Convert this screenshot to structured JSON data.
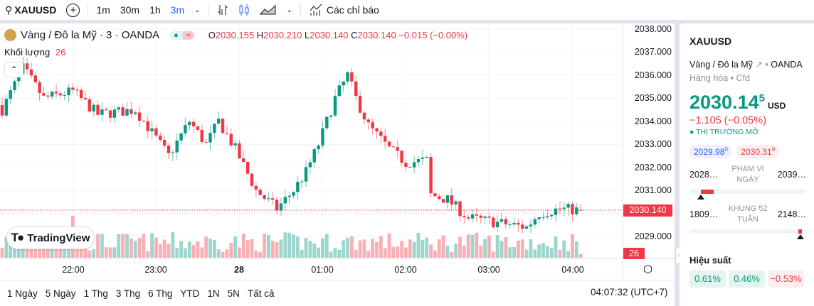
{
  "toolbar": {
    "symbol": "XAUUSD",
    "intervals": [
      "1m",
      "30m",
      "1h",
      "3m"
    ],
    "active_interval": "3m",
    "indicators_label": "Các chỉ báo"
  },
  "legend": {
    "title": "Vàng / Đô la Mỹ · 3 · OANDA",
    "o_label": "O",
    "o": "2030.155",
    "h_label": "H",
    "h": "2030.210",
    "l_label": "L",
    "l": "2030.140",
    "c_label": "C",
    "c": "2030.140",
    "change": "−0.015 (−0.00%)",
    "volume_label": "Khối lượng",
    "volume": "26"
  },
  "logo_text": "TradingView",
  "price_axis": [
    "2038.000",
    "2037.000",
    "2036.000",
    "2035.000",
    "2034.000",
    "2033.000",
    "2032.000",
    "2031.000",
    "2030.000",
    "2029.000"
  ],
  "current_price": "2030.140",
  "current_volume": "26",
  "time_axis": [
    "22:00",
    "23:00",
    "28",
    "01:00",
    "02:00",
    "03:00",
    "04:00"
  ],
  "ranges": [
    "1 Ngày",
    "5 Ngày",
    "1 Thg",
    "3 Thg",
    "6 Thg",
    "YTD",
    "1N",
    "5N",
    "Tất cả"
  ],
  "clock": "04:07:32 (UTC+7)",
  "colors": {
    "up": "#089981",
    "down": "#f23645",
    "accent": "#2962ff"
  },
  "chart_data": {
    "type": "candlestick",
    "price_range": [
      2028.4,
      2038.0
    ],
    "close_path": [
      [
        0,
        2034.5
      ],
      [
        5,
        2036.3
      ],
      [
        10,
        2035.0
      ],
      [
        17,
        2035.3
      ],
      [
        23,
        2034.3
      ],
      [
        32,
        2034.5
      ],
      [
        40,
        2032.5
      ],
      [
        45,
        2034.0
      ],
      [
        49,
        2033.0
      ],
      [
        52,
        2034.0
      ],
      [
        56,
        2032.8
      ],
      [
        61,
        2031.0
      ],
      [
        66,
        2030.2
      ],
      [
        70,
        2031.0
      ],
      [
        73,
        2031.8
      ],
      [
        76,
        2033.0
      ],
      [
        80,
        2035.0
      ],
      [
        83,
        2036.0
      ],
      [
        85,
        2035.0
      ],
      [
        88,
        2033.8
      ],
      [
        93,
        2032.8
      ],
      [
        97,
        2032.2
      ],
      [
        102,
        2032.3
      ],
      [
        103,
        2030.8
      ],
      [
        107,
        2030.6
      ],
      [
        112,
        2029.8
      ],
      [
        119,
        2029.6
      ],
      [
        126,
        2029.4
      ],
      [
        129,
        2030.0
      ],
      [
        134,
        2030.2
      ],
      [
        139,
        2030.14
      ]
    ]
  },
  "panel": {
    "symbol": "XAUUSD",
    "name": "Vàng / Đô la Mỹ",
    "exchange": "OANDA",
    "type": "Hàng hóa",
    "subtype": "Cfd",
    "price": "2030.14",
    "price_sup": "5",
    "currency": "USD",
    "change": "−1.105 (−0.05%)",
    "status": "THỊ TRƯỜNG MỞ",
    "bid": "2029.98",
    "bid_sup": "0",
    "ask": "2030.31",
    "ask_sup": "0",
    "day_low": "2028…",
    "day_high": "2039…",
    "day_label1": "PHẠM VI",
    "day_label2": "NGÀY",
    "wk_low": "1809…",
    "wk_high": "2148…",
    "wk_label1": "KHUNG 52",
    "wk_label2": "TUẦN",
    "day_position": 0.1,
    "wk_position": 0.95,
    "perf_title": "Hiệu suất",
    "perf": [
      "0.61%",
      "0.46%",
      "−0.53%"
    ]
  }
}
